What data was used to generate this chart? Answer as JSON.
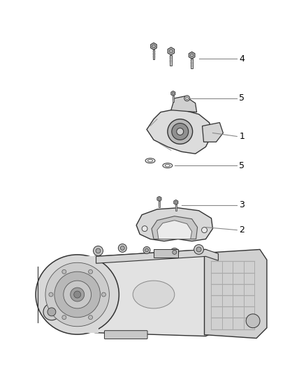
{
  "background_color": "#ffffff",
  "text_color": "#000000",
  "line_color": "#666666",
  "part_edge": "#333333",
  "part_fill_light": "#e8e8e8",
  "part_fill_mid": "#cccccc",
  "part_fill_dark": "#aaaaaa",
  "fig_width": 4.38,
  "fig_height": 5.33,
  "dpi": 100
}
